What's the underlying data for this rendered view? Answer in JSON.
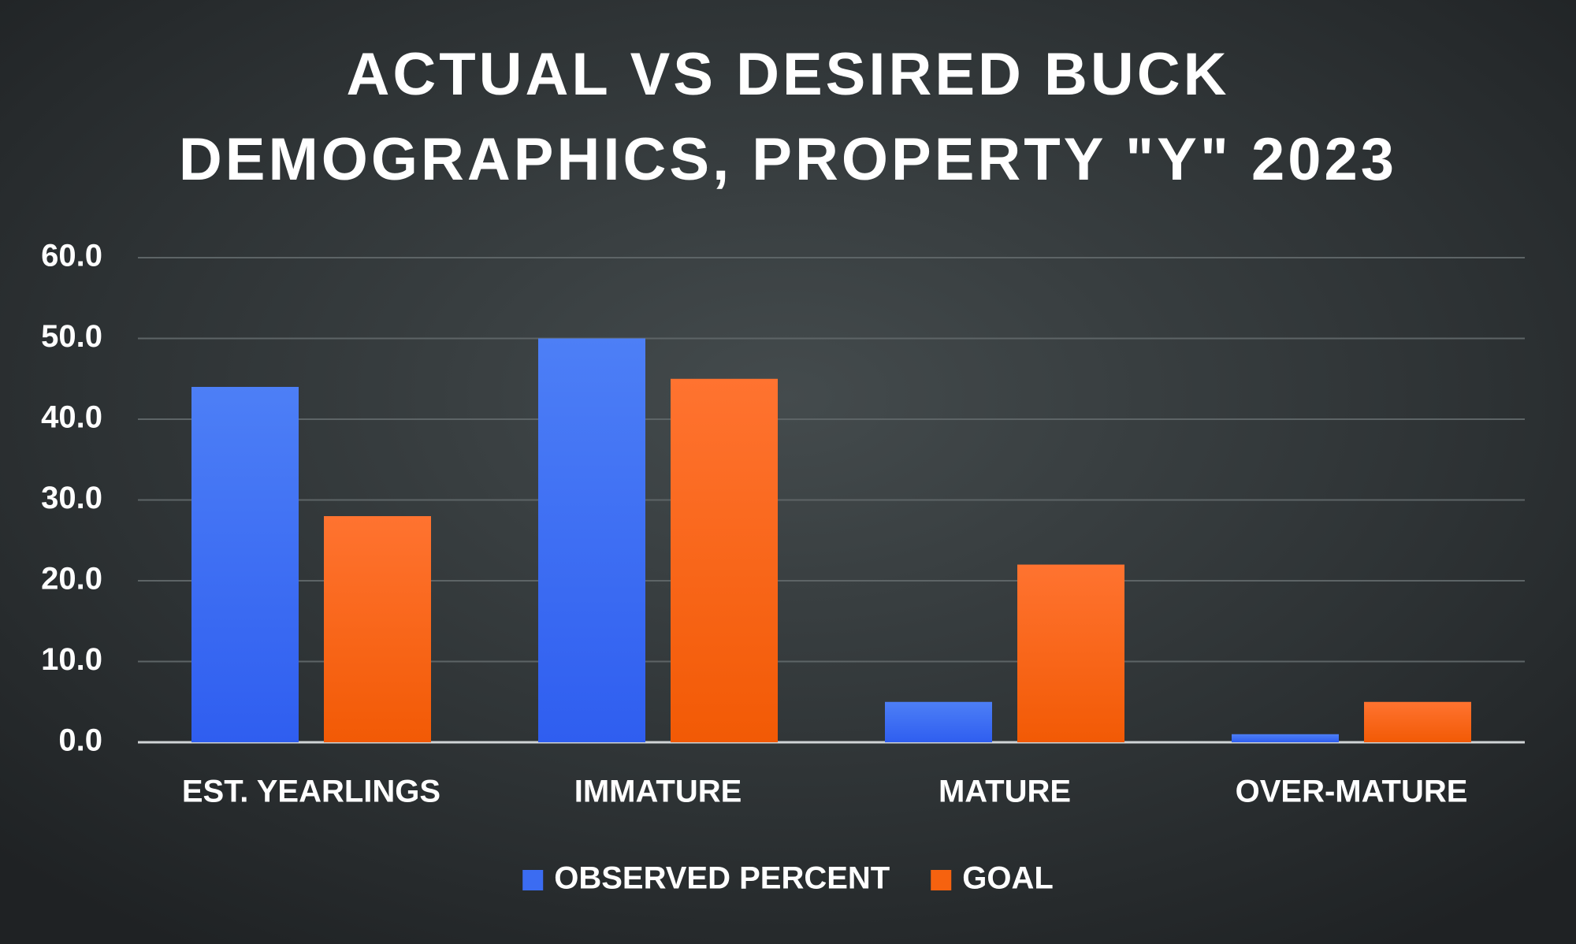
{
  "chart_data": {
    "type": "bar",
    "title": "ACTUAL VS DESIRED BUCK DEMOGRAPHICS, PROPERTY \"Y\" 2023",
    "title_lines": [
      "ACTUAL VS DESIRED BUCK",
      "DEMOGRAPHICS, PROPERTY \"Y\" 2023"
    ],
    "categories": [
      "EST. YEARLINGS",
      "IMMATURE",
      "MATURE",
      "OVER-MATURE"
    ],
    "series": [
      {
        "name": "OBSERVED PERCENT",
        "values": [
          44.0,
          50.0,
          5.0,
          1.0
        ],
        "color": "#3b6cf2"
      },
      {
        "name": "GOAL",
        "values": [
          28.0,
          45.0,
          22.0,
          5.0
        ],
        "color": "#f6620f"
      }
    ],
    "ylim": [
      0,
      60
    ],
    "yticks": [
      "0.0",
      "10.0",
      "20.0",
      "30.0",
      "40.0",
      "50.0",
      "60.0"
    ],
    "xlabel": "",
    "ylabel": "",
    "grid": true,
    "legend_position": "bottom",
    "background_color": "#2b2f31",
    "text_color": "#ffffff"
  }
}
